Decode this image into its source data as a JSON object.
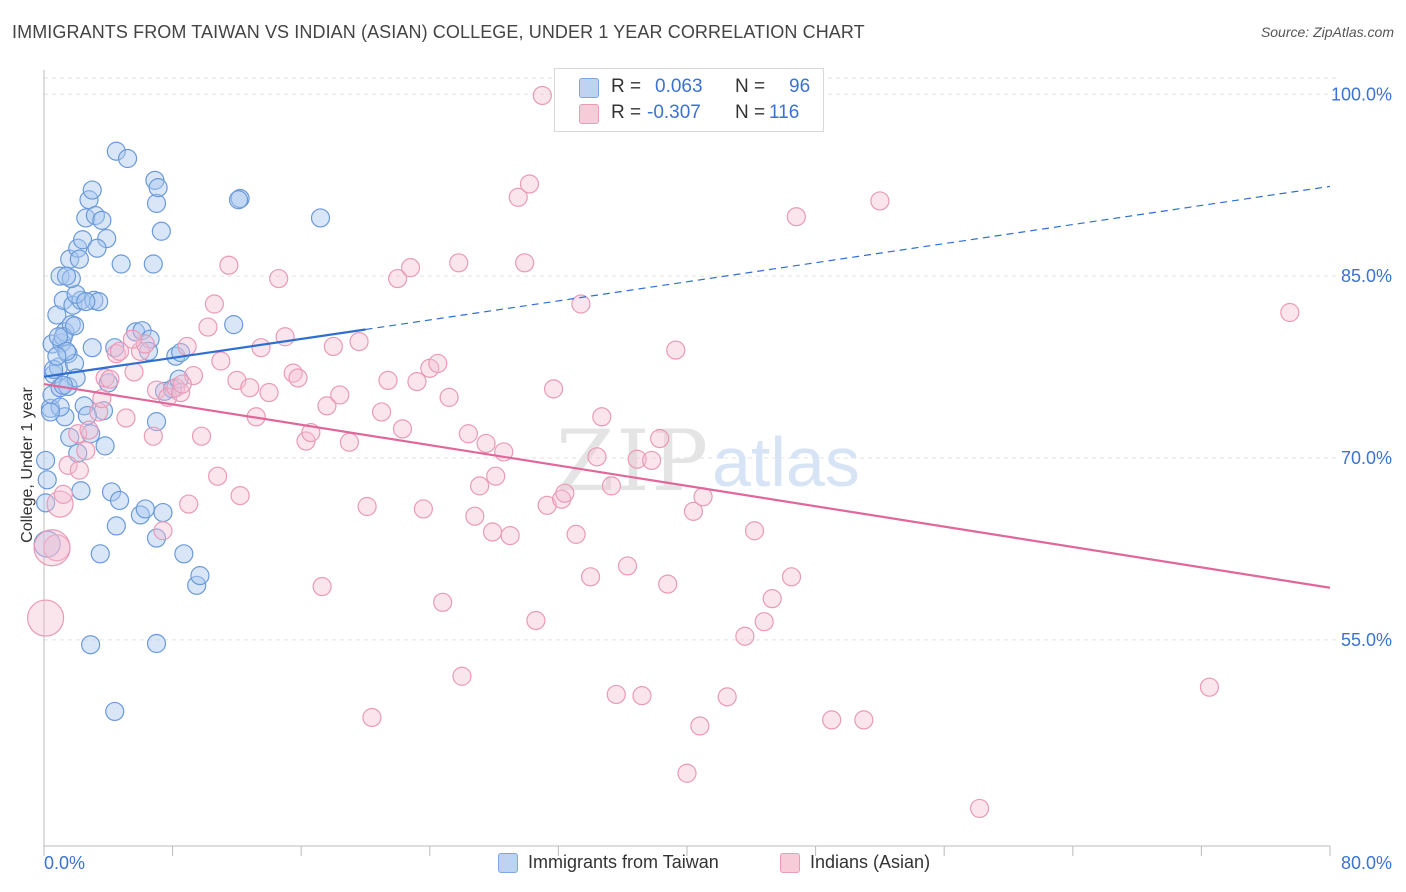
{
  "title": "IMMIGRANTS FROM TAIWAN VS INDIAN (ASIAN) COLLEGE, UNDER 1 YEAR CORRELATION CHART",
  "source": "Source: ZipAtlas.com",
  "watermark": {
    "zip": "ZIP",
    "atlas": "atlas"
  },
  "colors": {
    "blue_fill": "#a9c8ef",
    "blue_stroke": "#5b8fd6",
    "blue_line": "#2f6fd0",
    "pink_fill": "#f6bfd1",
    "pink_stroke": "#e889a9",
    "pink_line": "#e0679a",
    "tick_label": "#3b73d1",
    "grid": "#e2e2e2"
  },
  "legend": {
    "rows": [
      {
        "r_label": "R =",
        "r_value": "0.063",
        "n_label": "N =",
        "n_value": "96"
      },
      {
        "r_label": "R =",
        "r_value": "-0.307",
        "n_label": "N =",
        "n_value": "116"
      }
    ]
  },
  "bottom_legend": [
    {
      "label": "Immigrants from Taiwan"
    },
    {
      "label": "Indians (Asian)"
    }
  ],
  "chart_data": {
    "type": "scatter",
    "title": "IMMIGRANTS FROM TAIWAN VS INDIAN (ASIAN) COLLEGE, UNDER 1 YEAR CORRELATION CHART",
    "xlabel": "",
    "ylabel": "College, Under 1 year",
    "xlim": [
      0,
      80
    ],
    "ylim": [
      38,
      102
    ],
    "x_tick_labels": [
      "0.0%",
      "80.0%"
    ],
    "y_ticks": [
      55,
      70,
      85,
      100
    ],
    "y_tick_labels": [
      "55.0%",
      "70.0%",
      "85.0%",
      "100.0%"
    ],
    "grid": true,
    "legend_position": "top-center",
    "series": [
      {
        "name": "Immigrants from Taiwan",
        "color": "#5b8fd6",
        "trend": {
          "x": [
            0,
            20
          ],
          "y": [
            76.7,
            80.6
          ],
          "dashed_to": [
            80,
            92.4
          ]
        },
        "points": [
          [
            0.1,
            69.8,
            1
          ],
          [
            0.2,
            68.2,
            1
          ],
          [
            0.1,
            66.3,
            1
          ],
          [
            0.2,
            62.9,
            2
          ],
          [
            0.4,
            74.1,
            1
          ],
          [
            0.5,
            75.2,
            1
          ],
          [
            0.6,
            76.9,
            1
          ],
          [
            0.5,
            79.4,
            1
          ],
          [
            0.8,
            81.8,
            1
          ],
          [
            1.0,
            85.0,
            1
          ],
          [
            1.1,
            79.5,
            1
          ],
          [
            0.9,
            77.5,
            1
          ],
          [
            1.2,
            83.0,
            1
          ],
          [
            1.3,
            80.4,
            1
          ],
          [
            1.5,
            78.6,
            1
          ],
          [
            1.6,
            86.4,
            1
          ],
          [
            1.8,
            82.6,
            1
          ],
          [
            1.7,
            81.0,
            1
          ],
          [
            1.9,
            77.8,
            1
          ],
          [
            2.1,
            87.3,
            1
          ],
          [
            2.3,
            83.0,
            1
          ],
          [
            2.2,
            86.4,
            1
          ],
          [
            2.4,
            88.0,
            1
          ],
          [
            2.6,
            89.8,
            1
          ],
          [
            2.8,
            91.3,
            1
          ],
          [
            3.0,
            92.1,
            1
          ],
          [
            3.2,
            90.0,
            1
          ],
          [
            3.6,
            89.6,
            1
          ],
          [
            3.9,
            88.1,
            1
          ],
          [
            3.1,
            83.0,
            1
          ],
          [
            3.4,
            82.9,
            1
          ],
          [
            3.0,
            79.1,
            1
          ],
          [
            2.5,
            74.3,
            1
          ],
          [
            2.9,
            72.0,
            1
          ],
          [
            2.1,
            70.4,
            1
          ],
          [
            1.3,
            73.4,
            1
          ],
          [
            1.0,
            74.2,
            1
          ],
          [
            1.6,
            71.7,
            1
          ],
          [
            2.3,
            67.3,
            1
          ],
          [
            1.0,
            75.8,
            1
          ],
          [
            1.5,
            75.9,
            1
          ],
          [
            4.5,
            95.3,
            1
          ],
          [
            5.2,
            94.7,
            1
          ],
          [
            4.8,
            86.0,
            1
          ],
          [
            5.7,
            80.4,
            1
          ],
          [
            4.4,
            79.1,
            1
          ],
          [
            4.0,
            76.2,
            1
          ],
          [
            3.7,
            73.9,
            1
          ],
          [
            4.2,
            67.2,
            1
          ],
          [
            4.7,
            66.5,
            1
          ],
          [
            4.5,
            64.4,
            1
          ],
          [
            3.5,
            62.1,
            1
          ],
          [
            6.1,
            80.5,
            1
          ],
          [
            6.6,
            79.8,
            1
          ],
          [
            6.5,
            78.8,
            1
          ],
          [
            6.8,
            86.0,
            1
          ],
          [
            7.0,
            91.0,
            1
          ],
          [
            6.9,
            92.9,
            1
          ],
          [
            7.1,
            92.3,
            1
          ],
          [
            7.3,
            88.7,
            1
          ],
          [
            7.0,
            73.0,
            1
          ],
          [
            7.5,
            75.5,
            1
          ],
          [
            8.0,
            75.7,
            1
          ],
          [
            8.2,
            78.4,
            1
          ],
          [
            8.4,
            76.5,
            1
          ],
          [
            8.5,
            78.7,
            1
          ],
          [
            6.0,
            65.3,
            1
          ],
          [
            6.3,
            65.8,
            1
          ],
          [
            7.0,
            63.4,
            1
          ],
          [
            7.4,
            65.5,
            1
          ],
          [
            8.7,
            62.1,
            1
          ],
          [
            9.5,
            59.5,
            1
          ],
          [
            9.7,
            60.3,
            1
          ],
          [
            7.0,
            54.7,
            1
          ],
          [
            2.9,
            54.6,
            1
          ],
          [
            4.4,
            49.1,
            1
          ],
          [
            12.2,
            91.4,
            1
          ],
          [
            12.1,
            91.3,
            1
          ],
          [
            11.8,
            81.0,
            1
          ],
          [
            17.2,
            89.8,
            1
          ],
          [
            1.2,
            80.0,
            1
          ],
          [
            0.9,
            80.0,
            1
          ],
          [
            1.4,
            78.8,
            1
          ],
          [
            0.6,
            77.3,
            1
          ],
          [
            2.0,
            76.6,
            1
          ],
          [
            1.2,
            76.0,
            1
          ],
          [
            0.4,
            73.8,
            1
          ],
          [
            2.7,
            73.5,
            1
          ],
          [
            3.8,
            71.0,
            1
          ],
          [
            2.0,
            83.5,
            1
          ],
          [
            1.7,
            84.8,
            1
          ],
          [
            1.4,
            85.0,
            1
          ],
          [
            2.6,
            82.9,
            1
          ],
          [
            3.3,
            87.3,
            1
          ],
          [
            0.8,
            78.4,
            1
          ],
          [
            1.9,
            80.9,
            1
          ]
        ]
      },
      {
        "name": "Indians (Asian)",
        "color": "#e889a9",
        "trend": {
          "x": [
            0,
            80
          ],
          "y": [
            76.1,
            59.3
          ]
        },
        "points": [
          [
            0.1,
            56.8,
            3
          ],
          [
            0.8,
            62.6,
            2
          ],
          [
            1.0,
            66.2,
            2
          ],
          [
            1.5,
            69.4,
            1
          ],
          [
            2.2,
            69.0,
            1
          ],
          [
            2.6,
            70.6,
            1
          ],
          [
            2.1,
            72.0,
            1
          ],
          [
            3.4,
            73.8,
            1
          ],
          [
            3.6,
            74.9,
            1
          ],
          [
            3.8,
            76.6,
            1
          ],
          [
            4.1,
            76.5,
            1
          ],
          [
            4.5,
            78.6,
            1
          ],
          [
            4.7,
            78.8,
            1
          ],
          [
            5.1,
            73.3,
            1
          ],
          [
            5.6,
            77.1,
            1
          ],
          [
            6.0,
            78.8,
            1
          ],
          [
            6.3,
            79.4,
            1
          ],
          [
            6.8,
            71.8,
            1
          ],
          [
            7.0,
            75.6,
            1
          ],
          [
            7.4,
            64.0,
            1
          ],
          [
            7.7,
            75.0,
            1
          ],
          [
            8.2,
            75.8,
            1
          ],
          [
            8.5,
            75.4,
            1
          ],
          [
            8.9,
            79.2,
            1
          ],
          [
            9.3,
            76.8,
            1
          ],
          [
            9.8,
            71.8,
            1
          ],
          [
            10.2,
            80.8,
            1
          ],
          [
            10.6,
            82.7,
            1
          ],
          [
            11.0,
            78.0,
            1
          ],
          [
            11.5,
            85.9,
            1
          ],
          [
            12.0,
            76.4,
            1
          ],
          [
            12.2,
            66.9,
            1
          ],
          [
            12.8,
            75.8,
            1
          ],
          [
            13.2,
            73.4,
            1
          ],
          [
            13.5,
            79.1,
            1
          ],
          [
            14.0,
            75.4,
            1
          ],
          [
            14.6,
            84.8,
            1
          ],
          [
            15.0,
            80.0,
            1
          ],
          [
            15.5,
            77.0,
            1
          ],
          [
            15.8,
            76.6,
            1
          ],
          [
            16.3,
            71.4,
            1
          ],
          [
            16.6,
            72.1,
            1
          ],
          [
            17.3,
            59.4,
            1
          ],
          [
            17.6,
            74.3,
            1
          ],
          [
            18.0,
            79.2,
            1
          ],
          [
            18.4,
            75.2,
            1
          ],
          [
            19.0,
            71.3,
            1
          ],
          [
            19.6,
            79.6,
            1
          ],
          [
            20.1,
            66.0,
            1
          ],
          [
            20.4,
            48.6,
            1
          ],
          [
            21.0,
            73.8,
            1
          ],
          [
            21.4,
            76.4,
            1
          ],
          [
            22.0,
            84.8,
            1
          ],
          [
            22.3,
            72.4,
            1
          ],
          [
            22.8,
            85.7,
            1
          ],
          [
            23.2,
            76.3,
            1
          ],
          [
            23.6,
            65.8,
            1
          ],
          [
            24.0,
            77.4,
            1
          ],
          [
            24.5,
            77.8,
            1
          ],
          [
            24.8,
            58.1,
            1
          ],
          [
            25.2,
            75.0,
            1
          ],
          [
            25.8,
            86.1,
            1
          ],
          [
            26.0,
            52.0,
            1
          ],
          [
            26.4,
            72.0,
            1
          ],
          [
            26.8,
            65.2,
            1
          ],
          [
            27.1,
            67.7,
            1
          ],
          [
            27.5,
            71.2,
            1
          ],
          [
            27.9,
            63.9,
            1
          ],
          [
            28.1,
            68.5,
            1
          ],
          [
            28.6,
            70.5,
            1
          ],
          [
            29.0,
            63.6,
            1
          ],
          [
            29.5,
            91.5,
            1
          ],
          [
            29.9,
            86.1,
            1
          ],
          [
            30.2,
            92.6,
            1
          ],
          [
            30.6,
            56.6,
            1
          ],
          [
            31.0,
            99.9,
            1
          ],
          [
            31.3,
            66.1,
            1
          ],
          [
            31.7,
            75.7,
            1
          ],
          [
            32.2,
            66.6,
            1
          ],
          [
            32.4,
            67.1,
            1
          ],
          [
            33.1,
            63.7,
            1
          ],
          [
            33.4,
            82.7,
            1
          ],
          [
            34.0,
            60.2,
            1
          ],
          [
            34.4,
            70.1,
            1
          ],
          [
            34.7,
            73.4,
            1
          ],
          [
            35.3,
            67.7,
            1
          ],
          [
            35.6,
            50.5,
            1
          ],
          [
            36.3,
            61.1,
            1
          ],
          [
            36.9,
            69.9,
            1
          ],
          [
            37.2,
            50.4,
            1
          ],
          [
            37.8,
            69.8,
            1
          ],
          [
            38.3,
            71.6,
            1
          ],
          [
            38.8,
            59.6,
            1
          ],
          [
            39.3,
            78.9,
            1
          ],
          [
            40.4,
            65.6,
            1
          ],
          [
            40.8,
            47.9,
            1
          ],
          [
            41.0,
            66.8,
            1
          ],
          [
            42.5,
            50.3,
            1
          ],
          [
            43.6,
            55.3,
            1
          ],
          [
            44.2,
            64.0,
            1
          ],
          [
            44.8,
            56.5,
            1
          ],
          [
            45.3,
            58.4,
            1
          ],
          [
            46.5,
            60.2,
            1
          ],
          [
            46.8,
            89.9,
            1
          ],
          [
            40.0,
            44.0,
            1
          ],
          [
            49.0,
            48.4,
            1
          ],
          [
            51.0,
            48.4,
            1
          ],
          [
            52.0,
            91.2,
            1
          ],
          [
            58.2,
            41.1,
            1
          ],
          [
            72.5,
            51.1,
            1
          ],
          [
            77.5,
            82.0,
            1
          ],
          [
            0.5,
            62.6,
            3
          ],
          [
            1.2,
            67.0,
            1
          ],
          [
            2.8,
            72.3,
            1
          ],
          [
            5.5,
            79.8,
            1
          ],
          [
            8.6,
            76.1,
            1
          ],
          [
            10.8,
            68.5,
            1
          ],
          [
            9.0,
            66.2,
            1
          ]
        ]
      }
    ]
  }
}
